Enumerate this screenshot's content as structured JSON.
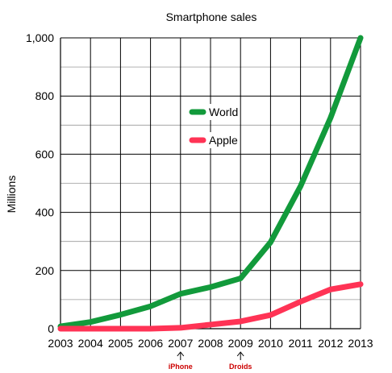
{
  "chart_data": {
    "type": "line",
    "title": "Smartphone sales",
    "xlabel": "",
    "ylabel": "Millions",
    "x": [
      "2003",
      "2004",
      "2005",
      "2006",
      "2007",
      "2008",
      "2009",
      "2010",
      "2011",
      "2012",
      "2013"
    ],
    "xlim": [
      2003,
      2013
    ],
    "ylim": [
      0,
      1000
    ],
    "yticks": [
      0,
      200,
      400,
      600,
      800,
      1000
    ],
    "ytick_labels": [
      "0",
      "200",
      "400",
      "600",
      "800",
      "1,000"
    ],
    "grid": true,
    "legend_position": "center",
    "series": [
      {
        "name": "World",
        "color": "#129a3b",
        "values": [
          8,
          23,
          48,
          77,
          120,
          143,
          173,
          297,
          490,
          725,
          1000
        ]
      },
      {
        "name": "Apple",
        "color": "#ff3355",
        "values": [
          0,
          0,
          0,
          0,
          3,
          14,
          25,
          47,
          93,
          135,
          153
        ]
      }
    ],
    "annotations": [
      {
        "x": "2007",
        "text": "iPhone",
        "color": "#cc0000"
      },
      {
        "x": "2009",
        "text": "Droids",
        "color": "#cc0000"
      }
    ]
  }
}
